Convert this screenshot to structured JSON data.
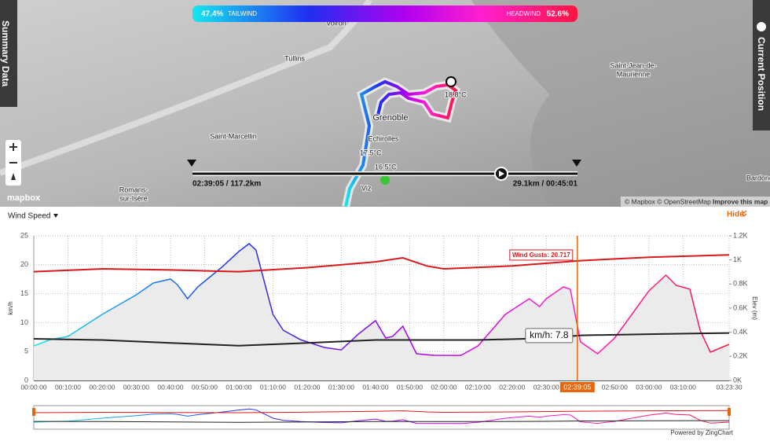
{
  "header": {
    "tailwind_value": "47.4%",
    "tailwind_label": "TAILWIND",
    "headwind_label": "HEADWIND",
    "headwind_value": "52.6%"
  },
  "side_tabs": {
    "left": "Summary Data",
    "right": "Current Position"
  },
  "map": {
    "places": [
      "Voiron",
      "Tullins",
      "Saint-Marcellin",
      "Romans-",
      "sur-Isère",
      "Grenoble",
      "Echirolles",
      "Saint-Jean-de-",
      "Maurienne",
      "Bardone",
      "Viz"
    ],
    "temperatures": [
      "18.8°C",
      "17.5°C",
      "16.5°C"
    ],
    "scrubber_left": "02:39:05 / 117.2km",
    "scrubber_right": "29.1km / 00:45:01",
    "logo": "mapbox",
    "attribution": "© Mapbox © OpenStreetMap",
    "improve": "Improve this map"
  },
  "hide": "Hide",
  "powered_by": "Powered by ZingChart",
  "chart_data": {
    "type": "line",
    "title": "Wind Speed",
    "y_label": "km/h",
    "y2_label": "Elev (m)",
    "xlim": [
      0,
      203.5
    ],
    "xticks": [
      {
        "value": 0,
        "label": "00:00:00"
      },
      {
        "value": 10,
        "label": "00:10:00"
      },
      {
        "value": 20,
        "label": "00:20:00"
      },
      {
        "value": 30,
        "label": "00:30:00"
      },
      {
        "value": 40,
        "label": "00:40:00"
      },
      {
        "value": 50,
        "label": "00:50:00"
      },
      {
        "value": 60,
        "label": "01:00:00"
      },
      {
        "value": 70,
        "label": "01:10:00"
      },
      {
        "value": 80,
        "label": "01:20:00"
      },
      {
        "value": 90,
        "label": "01:30:00"
      },
      {
        "value": 100,
        "label": "01:40:00"
      },
      {
        "value": 110,
        "label": "01:50:00"
      },
      {
        "value": 120,
        "label": "02:00:00"
      },
      {
        "value": 130,
        "label": "02:10:00"
      },
      {
        "value": 140,
        "label": "02:20:00"
      },
      {
        "value": 150,
        "label": "02:30:00"
      },
      {
        "value": 170,
        "label": "02:50:00"
      },
      {
        "value": 180,
        "label": "03:00:00"
      },
      {
        "value": 190,
        "label": "03:10:00"
      },
      {
        "value": 203.5,
        "label": "03:23:30"
      }
    ],
    "ylim": [
      0,
      25
    ],
    "yticks": [
      0,
      5,
      10,
      15,
      20,
      25
    ],
    "y2lim": [
      0,
      1200
    ],
    "y2ticks": [
      {
        "value": 0,
        "label": "0K"
      },
      {
        "value": 200,
        "label": "0.2K"
      },
      {
        "value": 400,
        "label": "0.4K"
      },
      {
        "value": 600,
        "label": "0.6K"
      },
      {
        "value": 800,
        "label": "0.8K"
      },
      {
        "value": 1000,
        "label": "1K"
      },
      {
        "value": 1200,
        "label": "1.2K"
      }
    ],
    "grid": true,
    "series": [
      {
        "name": "Wind Gusts",
        "color": "#d7191c",
        "x": [
          0,
          20,
          40,
          60,
          80,
          100,
          108,
          115,
          120,
          140,
          160,
          180,
          203.5
        ],
        "values": [
          18.8,
          19.3,
          19.1,
          18.8,
          19.5,
          20.5,
          21.2,
          19.8,
          19.3,
          19.8,
          20.7,
          21.3,
          21.7
        ]
      },
      {
        "name": "km/h",
        "color": "#222222",
        "x": [
          0,
          20,
          40,
          60,
          80,
          100,
          130,
          150,
          160,
          180,
          203.5
        ],
        "values": [
          7.2,
          7.0,
          6.5,
          6.0,
          6.5,
          7.0,
          7.0,
          7.3,
          7.8,
          8.0,
          8.2
        ]
      },
      {
        "color": "#c23ad0",
        "axis": "y2",
        "x": [
          0,
          5,
          10,
          20,
          30,
          35,
          40,
          42,
          45,
          48,
          55,
          60,
          63,
          65,
          70,
          73,
          78,
          85,
          90,
          95,
          100,
          103,
          105,
          108,
          112,
          117,
          125,
          130,
          138,
          145,
          148,
          150,
          155,
          157,
          160,
          165,
          170,
          175,
          180,
          185,
          188,
          192,
          195,
          198,
          203.5
        ],
        "values": [
          287,
          340,
          365,
          548,
          711,
          809,
          841,
          795,
          678,
          776,
          939,
          1070,
          1135,
          1083,
          548,
          417,
          339,
          274,
          254,
          385,
          496,
          352,
          365,
          450,
          222,
          209,
          208,
          287,
          548,
          678,
          613,
          678,
          776,
          757,
          320,
          222,
          352,
          548,
          743,
          874,
          789,
          757,
          417,
          235,
          300
        ]
      }
    ],
    "cursor": {
      "x": 159.08,
      "label": "02:39:05"
    },
    "tooltips": [
      "Wind Gusts: 20.717",
      "km/h: 7.8"
    ]
  }
}
